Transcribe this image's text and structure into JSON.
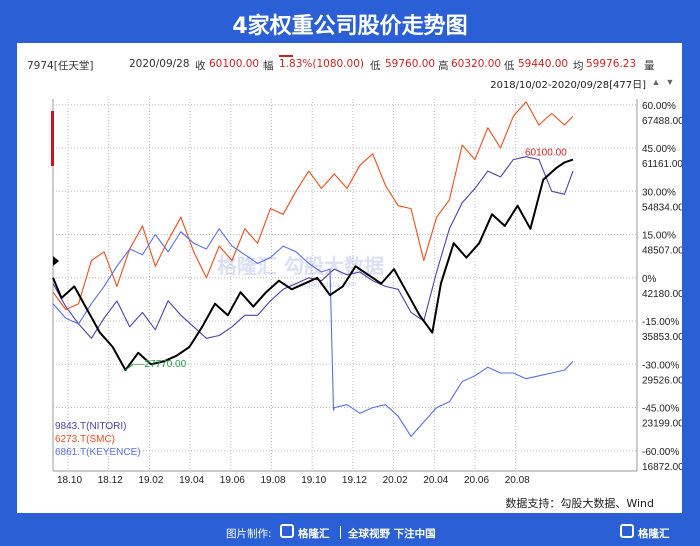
{
  "title": "4家权重公司股价走势图",
  "info": {
    "code": "7974[任天堂]",
    "date": "2020/09/28",
    "close_label": "收",
    "close": "60100.00",
    "change_label": "幅",
    "change": "1.83%(1080.00)",
    "low_label": "低",
    "low": "59760.00",
    "high_label": "高",
    "high": "60320.00",
    "open_label": "低",
    "open": "59440.00",
    "avg_label": "均",
    "avg": "59976.23",
    "vol_label": "量",
    "range": "2018/10/02-2020/09/28[477日]"
  },
  "source": "数据支持：勾股大数据、Wind",
  "footer": {
    "made_by": "图片制作:",
    "brand1": "格隆汇",
    "slogan": "全球视野 下注中国",
    "brand2": "格隆汇"
  },
  "watermark": "格隆汇  勾股大数据",
  "watermark_url": "www.gogudata.com",
  "colors": {
    "black": "#000000",
    "orange": "#ee4d1a",
    "purple": "#5040a8",
    "blue": "#5a70e0",
    "background": "#2a5fd6"
  },
  "chart_data": {
    "type": "line",
    "x_ticks": [
      "18.10",
      "18.12",
      "19.02",
      "19.04",
      "19.06",
      "19.08",
      "19.10",
      "19.12",
      "20.02",
      "20.04",
      "20.06",
      "20.08"
    ],
    "pct_ticks": [
      "60.00%",
      "45.00%",
      "30.00%",
      "15.00%",
      "0%",
      "-15.00%",
      "-30.00%",
      "-45.00%",
      "-60.00%"
    ],
    "price_ticks": [
      "67488.00",
      "61161.00",
      "54834.00",
      "48507.00",
      "42180.00",
      "35853.00",
      "29526.00",
      "23199.00",
      "16872.00"
    ],
    "pct_range": [
      -67,
      62
    ],
    "annotations": {
      "last": "60100.00",
      "min": "27770.00"
    },
    "legend": [
      "9843.T(NITORI)",
      "6273.T(SMC)",
      "6861.T(KEYENCE)"
    ],
    "series": [
      {
        "name": "",
        "color": "#000000",
        "points": [
          [
            0,
            0
          ],
          [
            2,
            -7
          ],
          [
            5,
            -3
          ],
          [
            8,
            -11
          ],
          [
            11,
            -19
          ],
          [
            14,
            -24
          ],
          [
            17,
            -32
          ],
          [
            20,
            -26
          ],
          [
            23,
            -30
          ],
          [
            26,
            -29
          ],
          [
            29,
            -27
          ],
          [
            32,
            -24
          ],
          [
            35,
            -17
          ],
          [
            38,
            -9
          ],
          [
            41,
            -13
          ],
          [
            44,
            -5
          ],
          [
            47,
            -10
          ],
          [
            50,
            -5
          ],
          [
            53,
            -1
          ],
          [
            56,
            -4
          ],
          [
            59,
            -2
          ],
          [
            62,
            0
          ],
          [
            65,
            -6
          ],
          [
            68,
            -3
          ],
          [
            71,
            4
          ],
          [
            74,
            1
          ],
          [
            77,
            -2
          ],
          [
            80,
            3
          ],
          [
            83,
            -5
          ],
          [
            86,
            -13
          ],
          [
            89,
            -19
          ],
          [
            91,
            -2
          ],
          [
            94,
            12
          ],
          [
            97,
            7
          ],
          [
            100,
            12
          ],
          [
            103,
            22
          ],
          [
            106,
            18
          ],
          [
            109,
            25
          ],
          [
            112,
            17
          ],
          [
            115,
            34
          ],
          [
            118,
            38
          ],
          [
            120,
            40
          ],
          [
            122,
            41
          ]
        ]
      },
      {
        "name": "9843.T(NITORI)",
        "color": "#5040a8",
        "points": [
          [
            0,
            -2
          ],
          [
            3,
            -10
          ],
          [
            6,
            -16
          ],
          [
            9,
            -21
          ],
          [
            12,
            -14
          ],
          [
            15,
            -8
          ],
          [
            18,
            -17
          ],
          [
            21,
            -12
          ],
          [
            24,
            -18
          ],
          [
            27,
            -8
          ],
          [
            30,
            -13
          ],
          [
            33,
            -17
          ],
          [
            36,
            -21
          ],
          [
            39,
            -20
          ],
          [
            42,
            -17
          ],
          [
            45,
            -13
          ],
          [
            48,
            -13
          ],
          [
            51,
            -8
          ],
          [
            54,
            -4
          ],
          [
            57,
            -2
          ],
          [
            60,
            0
          ],
          [
            63,
            -1
          ],
          [
            66,
            3
          ],
          [
            69,
            1
          ],
          [
            72,
            2
          ],
          [
            75,
            -1
          ],
          [
            78,
            -3
          ],
          [
            81,
            -4
          ],
          [
            84,
            -12
          ],
          [
            87,
            -15
          ],
          [
            90,
            2
          ],
          [
            93,
            17
          ],
          [
            96,
            26
          ],
          [
            99,
            31
          ],
          [
            102,
            37
          ],
          [
            105,
            35
          ],
          [
            108,
            41
          ],
          [
            111,
            42
          ],
          [
            114,
            41
          ],
          [
            117,
            30
          ],
          [
            120,
            29
          ],
          [
            122,
            37
          ]
        ]
      },
      {
        "name": "6273.T(SMC)",
        "color": "#ee4d1a",
        "points": [
          [
            0,
            -5
          ],
          [
            3,
            -11
          ],
          [
            6,
            -9
          ],
          [
            9,
            6
          ],
          [
            12,
            9
          ],
          [
            15,
            -3
          ],
          [
            18,
            10
          ],
          [
            21,
            18
          ],
          [
            24,
            4
          ],
          [
            27,
            13
          ],
          [
            30,
            21
          ],
          [
            33,
            9
          ],
          [
            36,
            0
          ],
          [
            39,
            11
          ],
          [
            42,
            6
          ],
          [
            45,
            17
          ],
          [
            48,
            12
          ],
          [
            51,
            24
          ],
          [
            54,
            22
          ],
          [
            57,
            30
          ],
          [
            60,
            37
          ],
          [
            63,
            31
          ],
          [
            66,
            36
          ],
          [
            69,
            31
          ],
          [
            72,
            39
          ],
          [
            75,
            43
          ],
          [
            78,
            32
          ],
          [
            81,
            25
          ],
          [
            84,
            24
          ],
          [
            87,
            6
          ],
          [
            90,
            21
          ],
          [
            93,
            27
          ],
          [
            96,
            46
          ],
          [
            99,
            41
          ],
          [
            102,
            52
          ],
          [
            105,
            45
          ],
          [
            108,
            56
          ],
          [
            111,
            61
          ],
          [
            114,
            53
          ],
          [
            117,
            57
          ],
          [
            120,
            53
          ],
          [
            122,
            56
          ]
        ]
      },
      {
        "name": "6861.T(KEYENCE)",
        "color": "#5a70e0",
        "points": [
          [
            0,
            -9
          ],
          [
            3,
            -14
          ],
          [
            6,
            -16
          ],
          [
            9,
            -9
          ],
          [
            12,
            -3
          ],
          [
            15,
            4
          ],
          [
            18,
            10
          ],
          [
            21,
            8
          ],
          [
            24,
            15
          ],
          [
            27,
            9
          ],
          [
            30,
            16
          ],
          [
            33,
            12
          ],
          [
            36,
            10
          ],
          [
            39,
            17
          ],
          [
            42,
            11
          ],
          [
            45,
            8
          ],
          [
            48,
            5
          ],
          [
            51,
            7
          ],
          [
            54,
            11
          ],
          [
            57,
            9
          ],
          [
            60,
            5
          ],
          [
            63,
            2
          ],
          [
            65,
            3
          ],
          [
            65.8,
            -46
          ],
          [
            66,
            -45
          ],
          [
            69,
            -44
          ],
          [
            72,
            -47
          ],
          [
            75,
            -45
          ],
          [
            78,
            -44
          ],
          [
            81,
            -48
          ],
          [
            84,
            -55
          ],
          [
            87,
            -50
          ],
          [
            90,
            -45
          ],
          [
            93,
            -43
          ],
          [
            96,
            -36
          ],
          [
            99,
            -34
          ],
          [
            102,
            -31
          ],
          [
            105,
            -33
          ],
          [
            108,
            -33
          ],
          [
            111,
            -35
          ],
          [
            114,
            -34
          ],
          [
            117,
            -33
          ],
          [
            120,
            -32
          ],
          [
            122,
            -29
          ]
        ]
      }
    ]
  }
}
